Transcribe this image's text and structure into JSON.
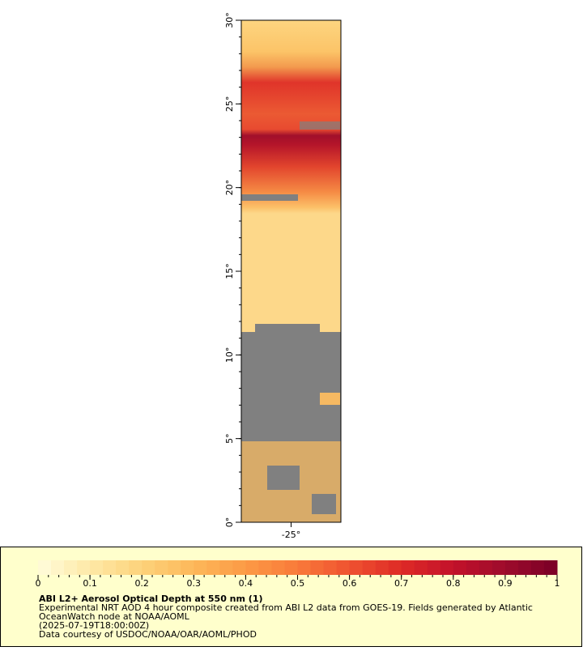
{
  "chart_data": {
    "type": "map",
    "title": "ABI L2+ Aerosol Optical Depth at 550 nm (1)",
    "description": [
      "Experimental NRT AOD 4 hour composite created from ABI L2 data from GOES-19. Fields generated by Atlantic",
      "OceanWatch node at NOAA/AOML"
    ],
    "time": "(2025-07-19T18:00:00Z)",
    "credit": "Data courtesy of USDOC/NOAA/OAR/AOML/PHOD",
    "ylim": [
      0,
      30
    ],
    "yticks": [
      {
        "value": 0,
        "label": "0°"
      },
      {
        "value": 5,
        "label": "5°"
      },
      {
        "value": 10,
        "label": "10°"
      },
      {
        "value": 15,
        "label": "15°"
      },
      {
        "value": 20,
        "label": "20°"
      },
      {
        "value": 25,
        "label": "25°"
      },
      {
        "value": 30,
        "label": "30°"
      }
    ],
    "xlim": [
      -28,
      -22
    ],
    "xticks": [
      {
        "value": -25,
        "label": "-25°"
      }
    ],
    "colorbar": {
      "lim": [
        0,
        1
      ],
      "ticks": [
        0,
        0.1,
        0.2,
        0.3,
        0.4,
        0.5,
        0.6,
        0.7,
        0.8,
        0.9,
        1
      ],
      "colors": [
        "#fffcdc",
        "#fee9a6",
        "#fdd27a",
        "#fdb85a",
        "#fc9a45",
        "#f97a3a",
        "#ef5230",
        "#de2a26",
        "#c3122a",
        "#9d0b2c",
        "#7a0026"
      ]
    }
  }
}
